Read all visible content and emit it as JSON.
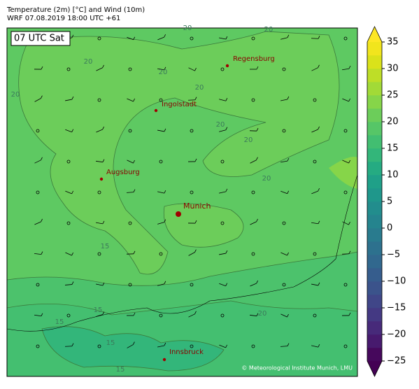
{
  "header": {
    "title": "Temperature (2m) [°C] and Wind (10m)",
    "subtitle": "WRF 07.08.2019 18:00 UTC +61"
  },
  "map": {
    "time_label": "07 UTC Sat",
    "cities": [
      "Regensburg",
      "Ingolstadt",
      "Augsburg",
      "Munich",
      "Innsbruck"
    ],
    "contour_labels": [
      20,
      20,
      20,
      20,
      20,
      20,
      20,
      20,
      20,
      15,
      15,
      15,
      15,
      15,
      20
    ],
    "credit": "© Meteorological Institute Munich, LMU"
  },
  "colorbar": {
    "lim": [
      -25,
      35
    ],
    "ticks": [
      {
        "value": -25,
        "label": "−25"
      },
      {
        "value": -20,
        "label": "−20"
      },
      {
        "value": -15,
        "label": "−15"
      },
      {
        "value": -10,
        "label": "−10"
      },
      {
        "value": -5,
        "label": "−5"
      },
      0,
      5,
      10,
      15,
      20,
      25,
      30,
      35
    ],
    "levels": [
      -25,
      -22.5,
      -20,
      -17.5,
      -15,
      -12.5,
      -10,
      -7.5,
      -5,
      -2.5,
      0,
      2.5,
      5,
      7.5,
      10,
      12.5,
      15,
      17.5,
      20,
      22.5,
      25,
      27.5,
      30,
      32.5,
      35
    ],
    "colors": [
      "#46085c",
      "#471a6e",
      "#472a7a",
      "#443983",
      "#404688",
      "#3b538b",
      "#365d8d",
      "#31688e",
      "#2d718e",
      "#297b8e",
      "#25848e",
      "#228d8d",
      "#1f978b",
      "#1fa088",
      "#25ab82",
      "#33b67a",
      "#42be71",
      "#56c667",
      "#6ccd5a",
      "#86d549",
      "#a2da37",
      "#bede27",
      "#dae21a",
      "#f1e51d"
    ],
    "under_color": "#440154",
    "over_color": "#fde725"
  }
}
